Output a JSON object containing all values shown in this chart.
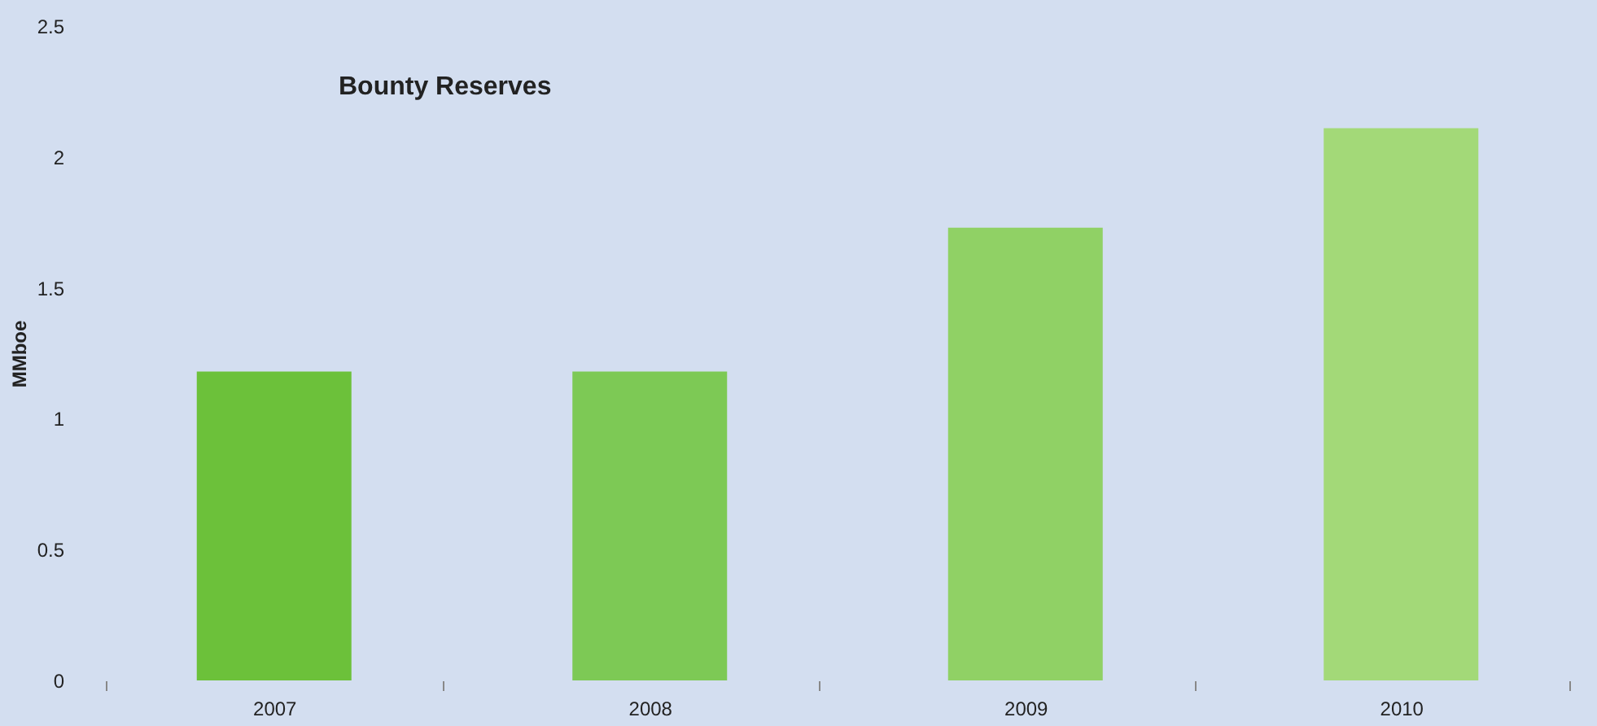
{
  "chart_data": {
    "type": "bar",
    "title": "Bounty Reserves",
    "ylabel": "MMboe",
    "categories": [
      "2007",
      "2008",
      "2009",
      "2010"
    ],
    "values": [
      1.18,
      1.18,
      1.73,
      2.11
    ],
    "colors": [
      "#6cc13a",
      "#7dc955",
      "#90d165",
      "#a3d978"
    ],
    "ylim": [
      0,
      2.5
    ],
    "yticks": [
      0,
      0.5,
      1,
      1.5,
      2,
      2.5
    ],
    "grid": false,
    "legend": false
  }
}
